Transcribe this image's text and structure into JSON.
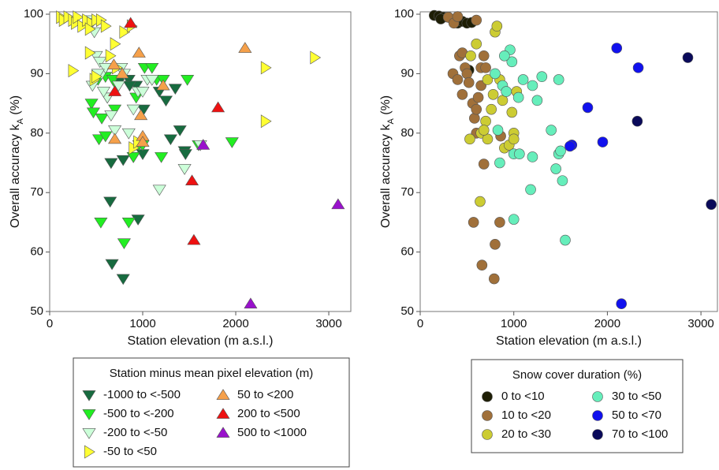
{
  "chart_data": [
    {
      "type": "scatter",
      "x_label": "Station elevation (m a.s.l.)",
      "y_label": [
        "Overall accuracy k",
        "A",
        " (%)"
      ],
      "xlim": [
        0,
        3237
      ],
      "ylim": [
        50,
        100.4
      ],
      "xticks": [
        0,
        1000,
        2000,
        3000
      ],
      "yticks": [
        50,
        60,
        70,
        80,
        90,
        100
      ],
      "legend_title": "Station minus mean pixel elevation (m)",
      "series": [
        {
          "name": "-1000 to <-500",
          "marker": "triangle-down",
          "color": "#176b3f",
          "x": [
            660,
            650,
            670,
            790,
            790,
            950,
            900,
            1000,
            1010,
            1180,
            1250,
            1350,
            1400,
            1450,
            1460,
            1300,
            930,
            850,
            860,
            740
          ],
          "values": [
            75,
            68.5,
            58,
            55.5,
            75.5,
            65.5,
            76,
            76.5,
            84,
            87,
            85.5,
            87.5,
            80.5,
            77,
            76.5,
            79,
            88,
            89,
            88,
            88.5
          ]
        },
        {
          "name": "-500 to <-200",
          "marker": "triangle-down",
          "color": "#22ee22",
          "x": [
            450,
            470,
            530,
            560,
            550,
            600,
            620,
            700,
            720,
            800,
            850,
            900,
            930,
            960,
            1000,
            1020,
            1100,
            1150,
            1200,
            1220,
            1480,
            1600,
            1960,
            520,
            600,
            680
          ],
          "values": [
            85,
            83.5,
            79,
            82.5,
            65,
            79.5,
            86,
            84,
            88,
            61.5,
            65,
            76,
            86,
            78,
            78,
            91,
            91,
            89,
            76,
            89,
            89,
            78,
            78.5,
            89,
            89.5,
            89
          ]
        },
        {
          "name": "-200 to <-50",
          "marker": "triangle-down",
          "color": "#ccffd9",
          "x": [
            420,
            450,
            480,
            500,
            540,
            560,
            600,
            620,
            660,
            700,
            740,
            770,
            800,
            850,
            900,
            950,
            1000,
            1050,
            1100,
            1180,
            1450,
            1620,
            520,
            580,
            460
          ],
          "values": [
            99,
            98.5,
            97,
            93,
            92,
            90,
            91,
            86,
            83,
            80.5,
            88,
            91,
            90,
            80,
            84,
            87,
            87,
            89,
            89,
            70.5,
            74,
            78,
            90,
            87,
            88
          ]
        },
        {
          "name": "-50 to <50",
          "marker": "triangle-right",
          "color": "#ffff33",
          "x": [
            120,
            150,
            200,
            250,
            280,
            300,
            350,
            400,
            450,
            500,
            550,
            600,
            430,
            250,
            430,
            480,
            650,
            700,
            720,
            800,
            880,
            900,
            950,
            2320,
            2320,
            2850,
            500
          ],
          "values": [
            99.5,
            99,
            99.5,
            99,
            98.5,
            99.5,
            98,
            99,
            98.5,
            99,
            99,
            98,
            97.5,
            90.5,
            93.5,
            89,
            93,
            95,
            91,
            97,
            98,
            77.5,
            78.5,
            91,
            82,
            92.7,
            89.5
          ]
        },
        {
          "name": "50 to <200",
          "marker": "triangle-up",
          "color": "#f5a04a",
          "x": [
            690,
            700,
            1000,
            1000,
            980,
            960,
            1220,
            2100,
            780
          ],
          "values": [
            91.5,
            79,
            79.5,
            78.5,
            83,
            93.5,
            88,
            94.3,
            90
          ]
        },
        {
          "name": "200 to <500",
          "marker": "triangle-up",
          "color": "#ee1111",
          "x": [
            870,
            1530,
            1550,
            1810,
            700
          ],
          "values": [
            98.5,
            72,
            62,
            84.3,
            87
          ]
        },
        {
          "name": "500 to <1000",
          "marker": "triangle-up",
          "color": "#9911cc",
          "x": [
            1650,
            2160,
            3100
          ],
          "values": [
            78,
            51.3,
            68
          ]
        }
      ]
    },
    {
      "type": "scatter",
      "x_label": "Station elevation (m a.s.l.)",
      "y_label": [
        "Overall accuracy k",
        "A",
        " (%)"
      ],
      "xlim": [
        0,
        3176
      ],
      "ylim": [
        50,
        100.4
      ],
      "xticks": [
        0,
        1000,
        2000,
        3000
      ],
      "yticks": [
        50,
        60,
        70,
        80,
        90,
        100
      ],
      "legend_title": "Snow cover duration (%)",
      "series": [
        {
          "name": "0 to <10",
          "marker": "circle",
          "color": "#1e1e05",
          "x": [
            150,
            200,
            250,
            300,
            350,
            400,
            450,
            500,
            550,
            220,
            520
          ],
          "values": [
            99.8,
            99.7,
            99.5,
            99.5,
            99,
            98.5,
            98.8,
            98.5,
            98.6,
            99.2,
            90.6
          ]
        },
        {
          "name": "10 to <20",
          "marker": "circle",
          "color": "#a0703a",
          "x": [
            350,
            400,
            420,
            450,
            480,
            500,
            520,
            560,
            580,
            600,
            600,
            620,
            650,
            650,
            680,
            700,
            680,
            660,
            570,
            790,
            800,
            850,
            860,
            450,
            300,
            360,
            400,
            600
          ],
          "values": [
            90,
            89,
            93,
            93.5,
            91,
            90,
            88.5,
            85,
            82.5,
            80,
            84,
            86,
            88,
            91,
            93,
            91,
            74.8,
            57.8,
            65,
            55.5,
            61.3,
            65,
            79.5,
            86.5,
            99.5,
            98.5,
            99.6,
            99
          ]
        },
        {
          "name": "20 to <30",
          "marker": "circle",
          "color": "#cccc33",
          "x": [
            640,
            650,
            700,
            720,
            760,
            780,
            800,
            820,
            850,
            880,
            900,
            950,
            980,
            1000,
            1000,
            1030,
            720,
            680,
            530,
            540,
            600
          ],
          "values": [
            68.5,
            80,
            82,
            89,
            84,
            86.5,
            97,
            98,
            89,
            85.5,
            77.5,
            78,
            83.5,
            80,
            79,
            87,
            79,
            80.5,
            79,
            93,
            95
          ]
        },
        {
          "name": "30 to <50",
          "marker": "circle",
          "color": "#66eebb",
          "x": [
            800,
            830,
            850,
            880,
            920,
            960,
            980,
            1000,
            1000,
            1050,
            1100,
            1180,
            1200,
            1250,
            1300,
            1400,
            1450,
            1480,
            1500,
            1520,
            1550,
            1480,
            1200,
            1060,
            900
          ],
          "values": [
            90,
            80.5,
            75,
            88,
            87,
            94,
            92,
            65.5,
            76.5,
            86,
            89,
            70.5,
            76,
            85.5,
            89.5,
            80.5,
            74,
            76.5,
            77,
            72,
            62,
            89,
            88,
            76.5,
            93
          ]
        },
        {
          "name": "50 to <70",
          "marker": "circle",
          "color": "#1111ee",
          "x": [
            1620,
            1600,
            1790,
            1950,
            2100,
            2150,
            2330
          ],
          "values": [
            78,
            77.8,
            84.3,
            78.5,
            94.3,
            51.3,
            91
          ]
        },
        {
          "name": "70 to <100",
          "marker": "circle",
          "color": "#0a0a5a",
          "x": [
            2320,
            2860,
            3110
          ],
          "values": [
            82,
            92.7,
            68
          ]
        }
      ]
    }
  ]
}
